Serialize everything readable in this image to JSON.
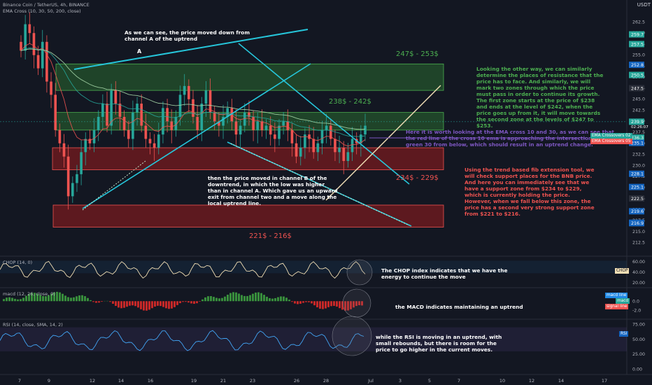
{
  "header": {
    "symbol_line": "Binance Coin / TetherUS, 4h, BINANCE",
    "ema_line": "EMA Cross (10, 30, 50, 200, close)",
    "currency": "USDT"
  },
  "colors": {
    "bg": "#131722",
    "up": "#26a69a",
    "down": "#ef5350",
    "cyan": "#26c6da",
    "fib": "#f2dfb5",
    "green_zone": "#2e7d32",
    "red_zone": "#b71c1c",
    "white_note": "#ffffff",
    "green_note": "#4caf50",
    "red_note": "#ef5350",
    "purple_note": "#7e57c2"
  },
  "annotations": {
    "channel_a": "As we can see, the price moved down from\nchannel A of the uptrend",
    "letter_a": "A",
    "channel_b": "then the price moved in channel B of the\ndowntrend, in which the low was higher\nthan in channel A. Which gave us an upward\nexit from channel two and a move along the\nlocal uptrend line.",
    "resistance": "Looking the other way, we can similarly\ndetermine the places of resistance that the\nprice has to face. And similarly, we will\nmark two zones through which the price\nmust pass in order to continue its growth.\nThe first zone starts at the price of $238\nand ends at the level of $242, when the\nprice goes up from it, it will move towards\nthe second zone at the levels of $247 to\n$253.",
    "ema": "Here it is worth looking at the EMA cross 10 and 30, as we can see that\nthe red line of the cross 10 ema is approaching the intersection of the\ngreen 30 from below, which should result in an uptrend change.",
    "support": "Using the trend based fib extension tool, we\nwill check support places for the BNB price.\nAnd here you can immediately see that we\nhave a support zone from $234 to $229,\nwhich is currently holding the price.\nHowever, when we fall below this zone, the\nprice has a second very strong support zone\nfrom $221 to $216.",
    "chop": "The CHOP index indicates that we have the\nenergy to continue the move",
    "macd": "the MACD indicates maintaining an uptrend",
    "rsi": "while the RSI is moving in an uptrend, with\nsmall rebounds, but there is room for the\nprice to go higher in the current moves."
  },
  "zones": [
    {
      "label": "247$ - 253$",
      "from": 247,
      "to": 253,
      "kind": "green"
    },
    {
      "label": "238$ - 242$",
      "from": 238,
      "to": 242,
      "kind": "green"
    },
    {
      "label": "234$ - 229$",
      "from": 229,
      "to": 234,
      "kind": "red"
    },
    {
      "label": "221$ - 216$",
      "from": 216,
      "to": 221,
      "kind": "red"
    }
  ],
  "legend": {
    "ema_a": "EMA Crossovers 02",
    "ema_b": "EMA Crossovers 05",
    "chop": "CHOP",
    "macd_line": "macd line",
    "macd": "macd",
    "signal": "signal line",
    "rsi": "RSI"
  },
  "panes": {
    "chop_title": "CHOP (14, 0)",
    "macd_title": "macd (12, 26, close, 9)",
    "rsi_title": "RSI (14, close, SMA, 14, 2)"
  },
  "chart_data": [
    {
      "type": "candlestick",
      "title": "Binance Coin / TetherUS, 4h, BINANCE",
      "y_ticks": [
        262.5,
        260.0,
        257.5,
        255.0,
        252.5,
        250.0,
        247.5,
        245.0,
        242.5,
        240.0,
        237.5,
        235.0,
        232.5,
        230.0,
        227.5,
        225.0,
        222.5,
        220.0,
        217.5,
        215.0,
        212.5
      ],
      "ylim": [
        211,
        264
      ],
      "x_ticks": [
        "7",
        "9",
        "12",
        "14",
        "16",
        "19",
        "21",
        "23",
        "26",
        "28",
        "Jul",
        "3",
        "5",
        "7",
        "10",
        "12",
        "14",
        "17"
      ],
      "price_tags": [
        {
          "value": 259.7,
          "color": "#26a69a"
        },
        {
          "value": 257.5,
          "color": "#26a69a"
        },
        {
          "value": 252.8,
          "color": "#1565c0"
        },
        {
          "value": 250.5,
          "color": "#26a69a"
        },
        {
          "value": 247.5,
          "color": "#2a2e39"
        },
        {
          "value": 239.9,
          "color": "#26a69a"
        },
        {
          "value": 236.3,
          "color": "#26a69a"
        },
        {
          "value": 235.1,
          "color": "#1565c0"
        },
        {
          "value": 228.1,
          "color": "#1565c0"
        },
        {
          "value": 225.1,
          "color": "#1565c0"
        },
        {
          "value": 222.5,
          "color": "#2a2e39"
        },
        {
          "value": 219.6,
          "color": "#1565c0"
        },
        {
          "value": 217.0,
          "color": "#1565c0"
        },
        {
          "value": 216.9,
          "color": "#1565c0"
        }
      ],
      "current_price": 239.9,
      "current_time_label": "02:26:07",
      "close_series": [
        256,
        262,
        260,
        255,
        252,
        258,
        249,
        246,
        238,
        235,
        232,
        223,
        226,
        228,
        233,
        236,
        235,
        238,
        241,
        244,
        239,
        247,
        244,
        241,
        238,
        236,
        242,
        244,
        239,
        236,
        235,
        234,
        237,
        243,
        240,
        238,
        241,
        246,
        248,
        245,
        241,
        238,
        244,
        247,
        242,
        240,
        239,
        241,
        243,
        240,
        237,
        239,
        242,
        241,
        238,
        240,
        238,
        239,
        237,
        236,
        239,
        240,
        238,
        235,
        232,
        234,
        237,
        236,
        233,
        235,
        238,
        239,
        236,
        233,
        234,
        231,
        233,
        236,
        235,
        237,
        239
      ]
    },
    {
      "type": "line",
      "title": "CHOP (14, 0)",
      "y_ticks": [
        60.0,
        40.0,
        20.0
      ],
      "ylim": [
        15,
        65
      ]
    },
    {
      "type": "bar",
      "title": "macd (12, 26, close, 9)",
      "y_ticks": [
        0.0,
        -2.0
      ],
      "ylim": [
        -3.5,
        2.5
      ]
    },
    {
      "type": "line",
      "title": "RSI (14, close, SMA, 14, 2)",
      "y_ticks": [
        75.0,
        50.0,
        25.0,
        0.0
      ],
      "ylim": [
        -5,
        80
      ]
    }
  ]
}
